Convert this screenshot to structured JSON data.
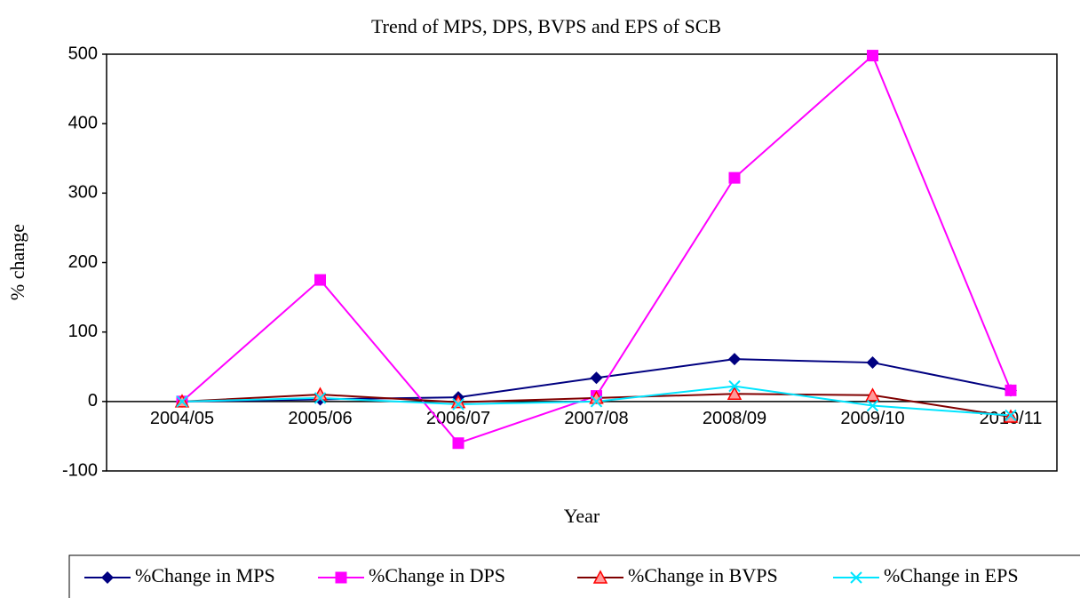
{
  "chart_data": {
    "type": "line",
    "title": "Trend of MPS, DPS, BVPS and EPS of SCB",
    "x_label": "Year",
    "y_label": "% change",
    "categories": [
      "2004/05",
      "2005/06",
      "2006/07",
      "2007/08",
      "2008/09",
      "2009/10",
      "2010/11"
    ],
    "series": [
      {
        "name": "%Change in MPS",
        "color": "#000080",
        "marker": "diamond",
        "values": [
          0,
          3,
          6,
          34,
          61,
          56,
          16
        ]
      },
      {
        "name": "%Change in DPS",
        "color": "#ff00ff",
        "marker": "square",
        "values": [
          0,
          175,
          -60,
          8,
          322,
          498,
          16
        ]
      },
      {
        "name": "%Change in BVPS",
        "color": "#800000",
        "marker": "triangle",
        "values": [
          0,
          10,
          -1,
          5,
          11,
          9,
          -22
        ]
      },
      {
        "name": "%Change in EPS",
        "color": "#00e5ff",
        "marker": "x",
        "values": [
          0,
          5,
          -4,
          0,
          22,
          -6,
          -20
        ]
      }
    ],
    "ylim": [
      -100,
      500
    ],
    "yticks": [
      -100,
      0,
      100,
      200,
      300,
      400,
      500
    ],
    "legend": "bottom"
  }
}
